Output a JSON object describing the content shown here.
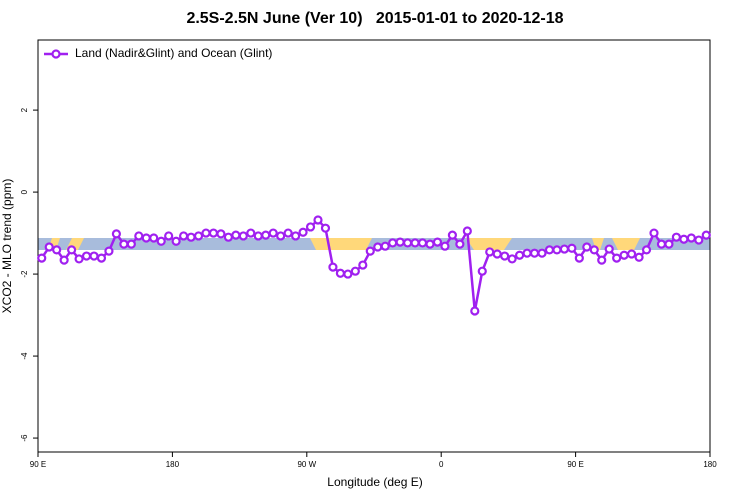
{
  "chart_data": {
    "type": "line",
    "title": "2.5S-2.5N June (Ver 10)   2015-01-01 to 2020-12-18",
    "x_label": "Longitude (deg E)",
    "y_label": "XCO2 - MLO trend (ppm)",
    "xlim": [
      90,
      540
    ],
    "ylim": [
      -6.34,
      3.71
    ],
    "xticks": [
      {
        "value": 90,
        "label": "90 E"
      },
      180,
      {
        "value": 270,
        "label": "90 W"
      },
      {
        "value": 360,
        "label": "0"
      },
      {
        "value": 450,
        "label": "90 E"
      },
      {
        "value": 540,
        "label": "180"
      }
    ],
    "yticks": [
      2,
      0,
      -2,
      -4,
      -6
    ],
    "legend": "top-left",
    "x": [
      92.5,
      97.5,
      102.5,
      107.5,
      112.5,
      117.5,
      122.5,
      127.5,
      132.5,
      137.5,
      142.5,
      147.5,
      152.5,
      157.5,
      162.5,
      167.5,
      172.5,
      177.5,
      182.5,
      187.5,
      192.5,
      197.5,
      202.5,
      207.5,
      212.5,
      217.5,
      222.5,
      227.5,
      232.5,
      237.5,
      242.5,
      247.5,
      252.5,
      257.5,
      262.5,
      267.5,
      272.5,
      277.5,
      282.5,
      287.5,
      292.5,
      297.5,
      302.5,
      307.5,
      312.5,
      317.5,
      322.5,
      327.5,
      332.5,
      337.5,
      342.5,
      347.5,
      352.5,
      357.5,
      362.5,
      367.5,
      372.5,
      377.5,
      382.5,
      387.5,
      392.5,
      397.5,
      402.5,
      407.5,
      412.5,
      417.5,
      422.5,
      427.5,
      432.5,
      437.5,
      442.5,
      447.5,
      452.5,
      457.5,
      462.5,
      467.5,
      472.5,
      477.5,
      482.5,
      487.5,
      492.5,
      497.5,
      502.5,
      507.5,
      512.5,
      517.5,
      522.5,
      527.5,
      532.5,
      537.5
    ],
    "series": [
      {
        "name": "Land (Nadir&Glint) and Ocean (Glint)",
        "color": "#a020f0",
        "values": [
          -1.61,
          -1.34,
          -1.41,
          -1.66,
          -1.41,
          -1.63,
          -1.56,
          -1.56,
          -1.61,
          -1.44,
          -1.02,
          -1.27,
          -1.27,
          -1.07,
          -1.12,
          -1.12,
          -1.2,
          -1.07,
          -1.2,
          -1.07,
          -1.1,
          -1.07,
          -1.0,
          -1.0,
          -1.02,
          -1.1,
          -1.05,
          -1.07,
          -1.0,
          -1.07,
          -1.05,
          -1.0,
          -1.07,
          -1.0,
          -1.07,
          -0.98,
          -0.85,
          -0.68,
          -0.88,
          -1.83,
          -1.98,
          -2.0,
          -1.93,
          -1.78,
          -1.44,
          -1.34,
          -1.32,
          -1.24,
          -1.22,
          -1.24,
          -1.24,
          -1.24,
          -1.27,
          -1.22,
          -1.32,
          -1.05,
          -1.27,
          -0.95,
          -2.9,
          -1.93,
          -1.46,
          -1.51,
          -1.56,
          -1.63,
          -1.54,
          -1.49,
          -1.49,
          -1.49,
          -1.41,
          -1.41,
          -1.39,
          -1.37,
          -1.61,
          -1.34,
          -1.41,
          -1.66,
          -1.39,
          -1.61,
          -1.54,
          -1.51,
          -1.59,
          -1.41,
          -1.0,
          -1.27,
          -1.27,
          -1.1,
          -1.15,
          -1.12,
          -1.17,
          -1.05
        ]
      }
    ]
  }
}
